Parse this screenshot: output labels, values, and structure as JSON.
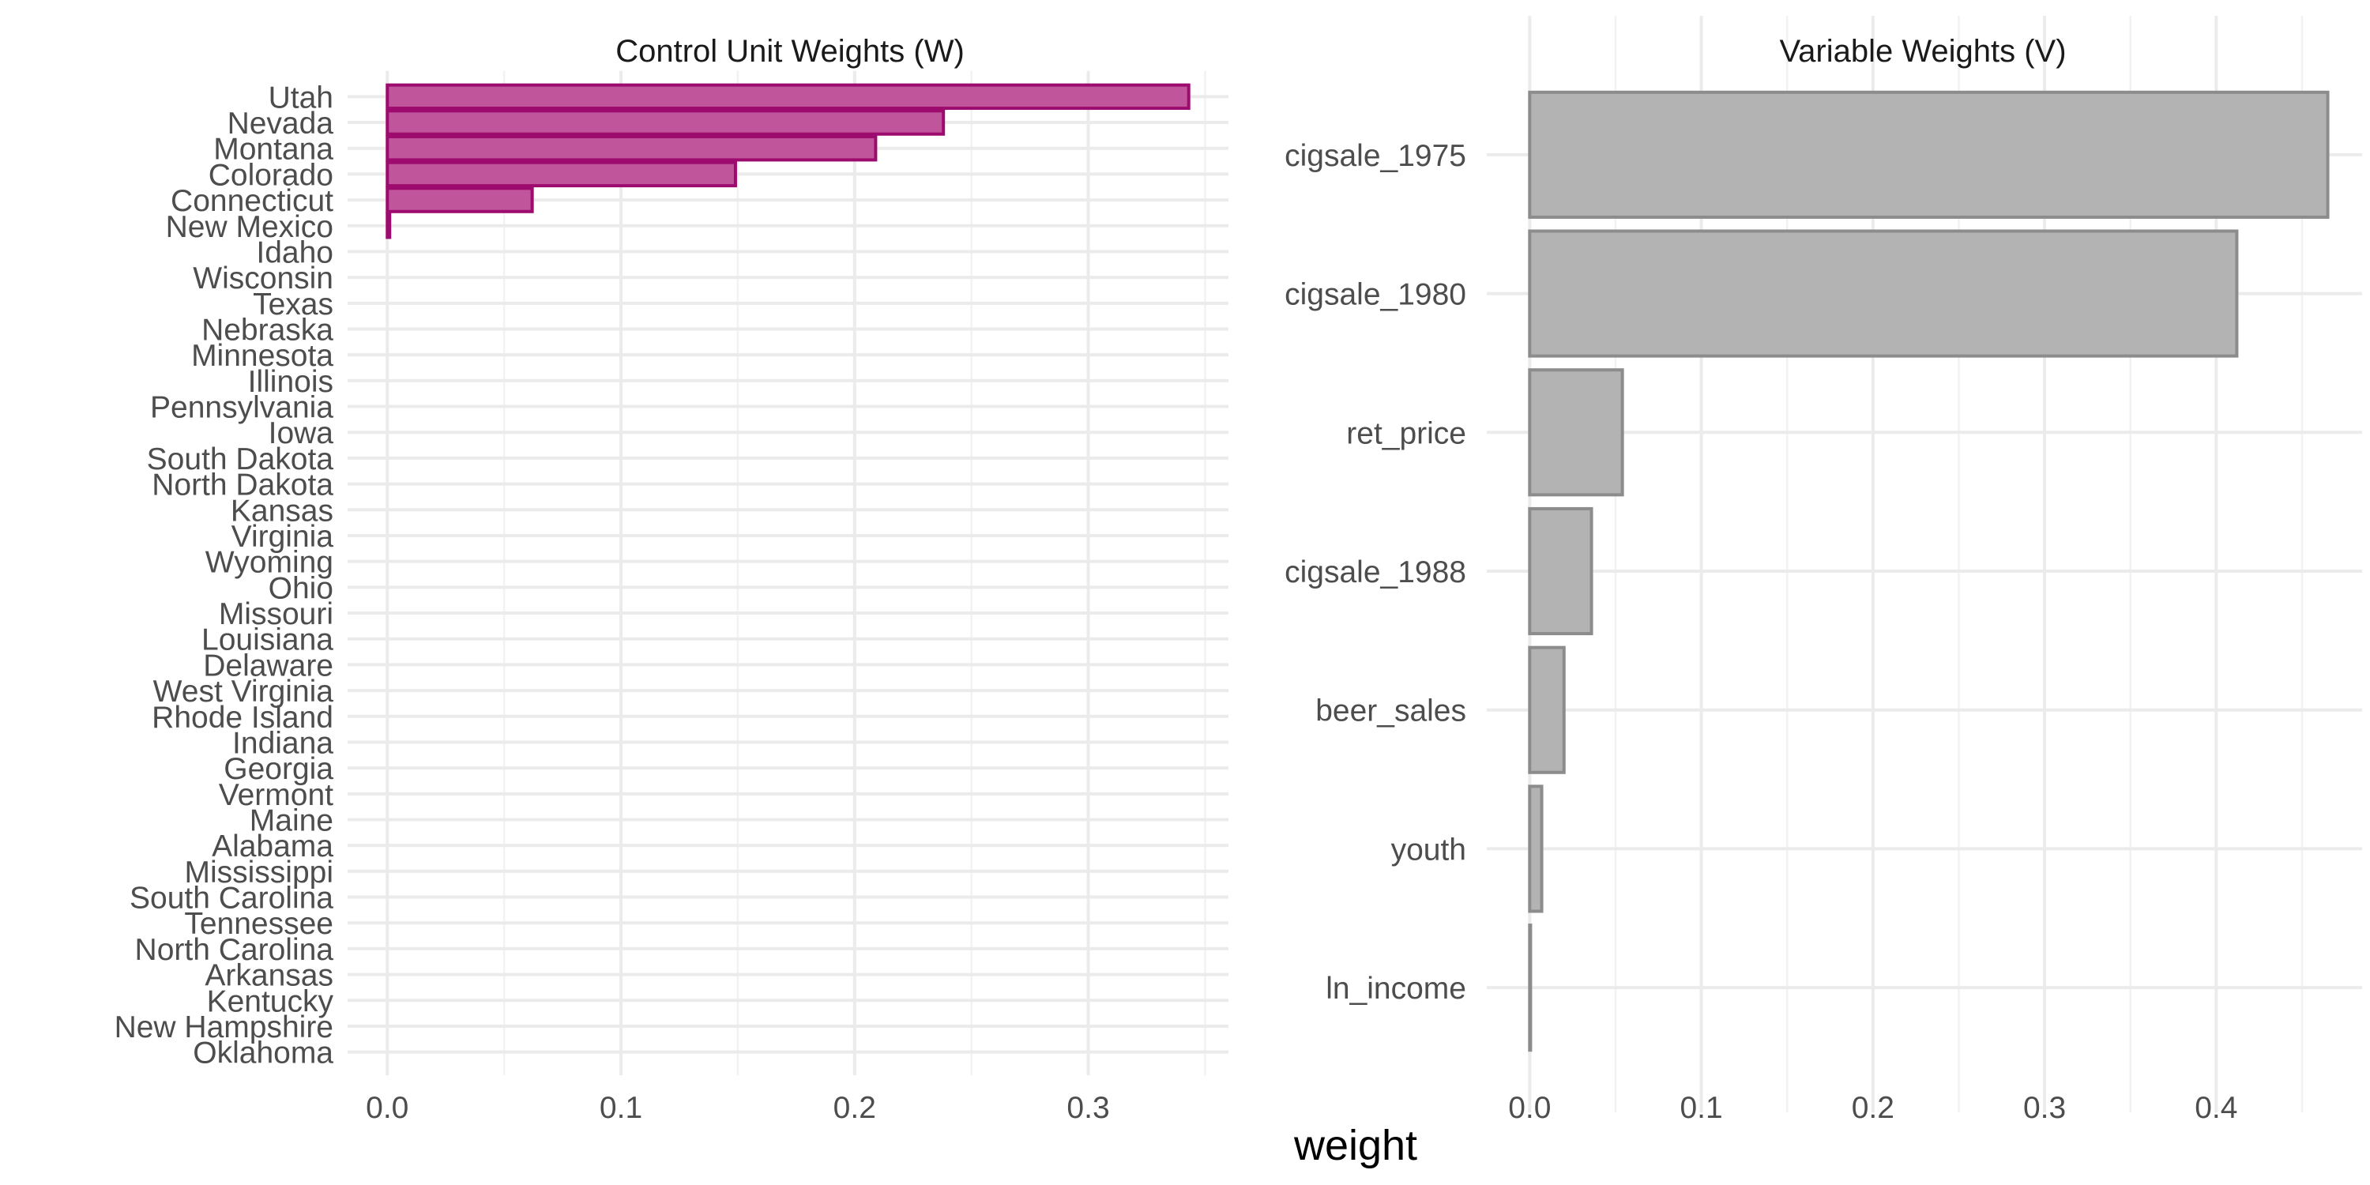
{
  "chart_data": [
    {
      "type": "bar",
      "orientation": "horizontal",
      "title": "Control Unit Weights (W)",
      "xlabel": "weight",
      "ylabel": "",
      "categories": [
        "Utah",
        "Nevada",
        "Montana",
        "Colorado",
        "Connecticut",
        "New Mexico",
        "Idaho",
        "Wisconsin",
        "Texas",
        "Nebraska",
        "Minnesota",
        "Illinois",
        "Pennsylvania",
        "Iowa",
        "South Dakota",
        "North Dakota",
        "Kansas",
        "Virginia",
        "Wyoming",
        "Ohio",
        "Missouri",
        "Louisiana",
        "Delaware",
        "West Virginia",
        "Rhode Island",
        "Indiana",
        "Georgia",
        "Vermont",
        "Maine",
        "Alabama",
        "Mississippi",
        "South Carolina",
        "Tennessee",
        "North Carolina",
        "Arkansas",
        "Kentucky",
        "New Hampshire",
        "Oklahoma"
      ],
      "values": [
        0.343,
        0.238,
        0.209,
        0.149,
        0.062,
        0.001,
        0,
        0,
        0,
        0,
        0,
        0,
        0,
        0,
        0,
        0,
        0,
        0,
        0,
        0,
        0,
        0,
        0,
        0,
        0,
        0,
        0,
        0,
        0,
        0,
        0,
        0,
        0,
        0,
        0,
        0,
        0,
        0
      ],
      "xlim": [
        -0.017,
        0.36
      ],
      "x_ticks": [
        0.0,
        0.1,
        0.2,
        0.3
      ],
      "x_tick_labels": [
        "0.0",
        "0.1",
        "0.2",
        "0.3"
      ],
      "bar_fill": "#c0559b",
      "bar_stroke": "#9e0b6e",
      "grid": true,
      "legend": "none"
    },
    {
      "type": "bar",
      "orientation": "horizontal",
      "title": "Variable Weights (V)",
      "xlabel": "weight",
      "ylabel": "",
      "categories": [
        "cigsale_1975",
        "cigsale_1980",
        "ret_price",
        "cigsale_1988",
        "beer_sales",
        "youth",
        "ln_income"
      ],
      "values": [
        0.465,
        0.412,
        0.054,
        0.036,
        0.02,
        0.007,
        0.0005
      ],
      "xlim": [
        -0.025,
        0.485
      ],
      "x_ticks": [
        0.0,
        0.1,
        0.2,
        0.3,
        0.4
      ],
      "x_tick_labels": [
        "0.0",
        "0.1",
        "0.2",
        "0.3",
        "0.4"
      ],
      "bar_fill": "#b3b3b3",
      "bar_stroke": "#8c8c8c",
      "grid": true,
      "legend": "none"
    }
  ],
  "shared_xlabel": "weight"
}
